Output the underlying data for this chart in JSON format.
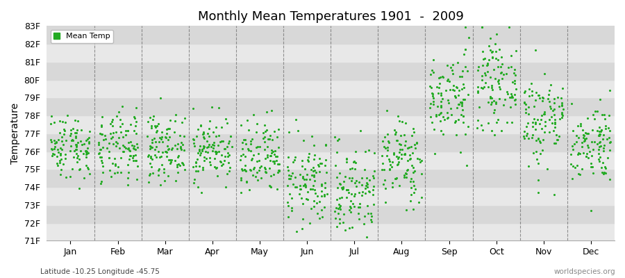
{
  "title": "Monthly Mean Temperatures 1901  -  2009",
  "ylabel": "Temperature",
  "footnote_left": "Latitude -10.25 Longitude -45.75",
  "footnote_right": "worldspecies.org",
  "legend_label": "Mean Temp",
  "dot_color": "#22aa22",
  "bg_color_light": "#e8e8e8",
  "bg_color_dark": "#d8d8d8",
  "ylim_min": 71,
  "ylim_max": 83,
  "ytick_labels": [
    "71F",
    "72F",
    "73F",
    "74F",
    "75F",
    "76F",
    "77F",
    "78F",
    "79F",
    "80F",
    "81F",
    "82F",
    "83F"
  ],
  "months": [
    "Jan",
    "Feb",
    "Mar",
    "Apr",
    "May",
    "Jun",
    "Jul",
    "Aug",
    "Sep",
    "Oct",
    "Nov",
    "Dec"
  ],
  "num_years": 109,
  "seed": 42,
  "monthly_means": [
    76.3,
    76.1,
    76.2,
    76.1,
    75.5,
    74.2,
    73.8,
    75.5,
    79.0,
    79.8,
    77.8,
    76.5
  ],
  "monthly_stds": [
    0.9,
    1.0,
    0.9,
    0.9,
    1.1,
    1.2,
    1.3,
    1.2,
    1.3,
    1.2,
    1.4,
    1.1
  ]
}
